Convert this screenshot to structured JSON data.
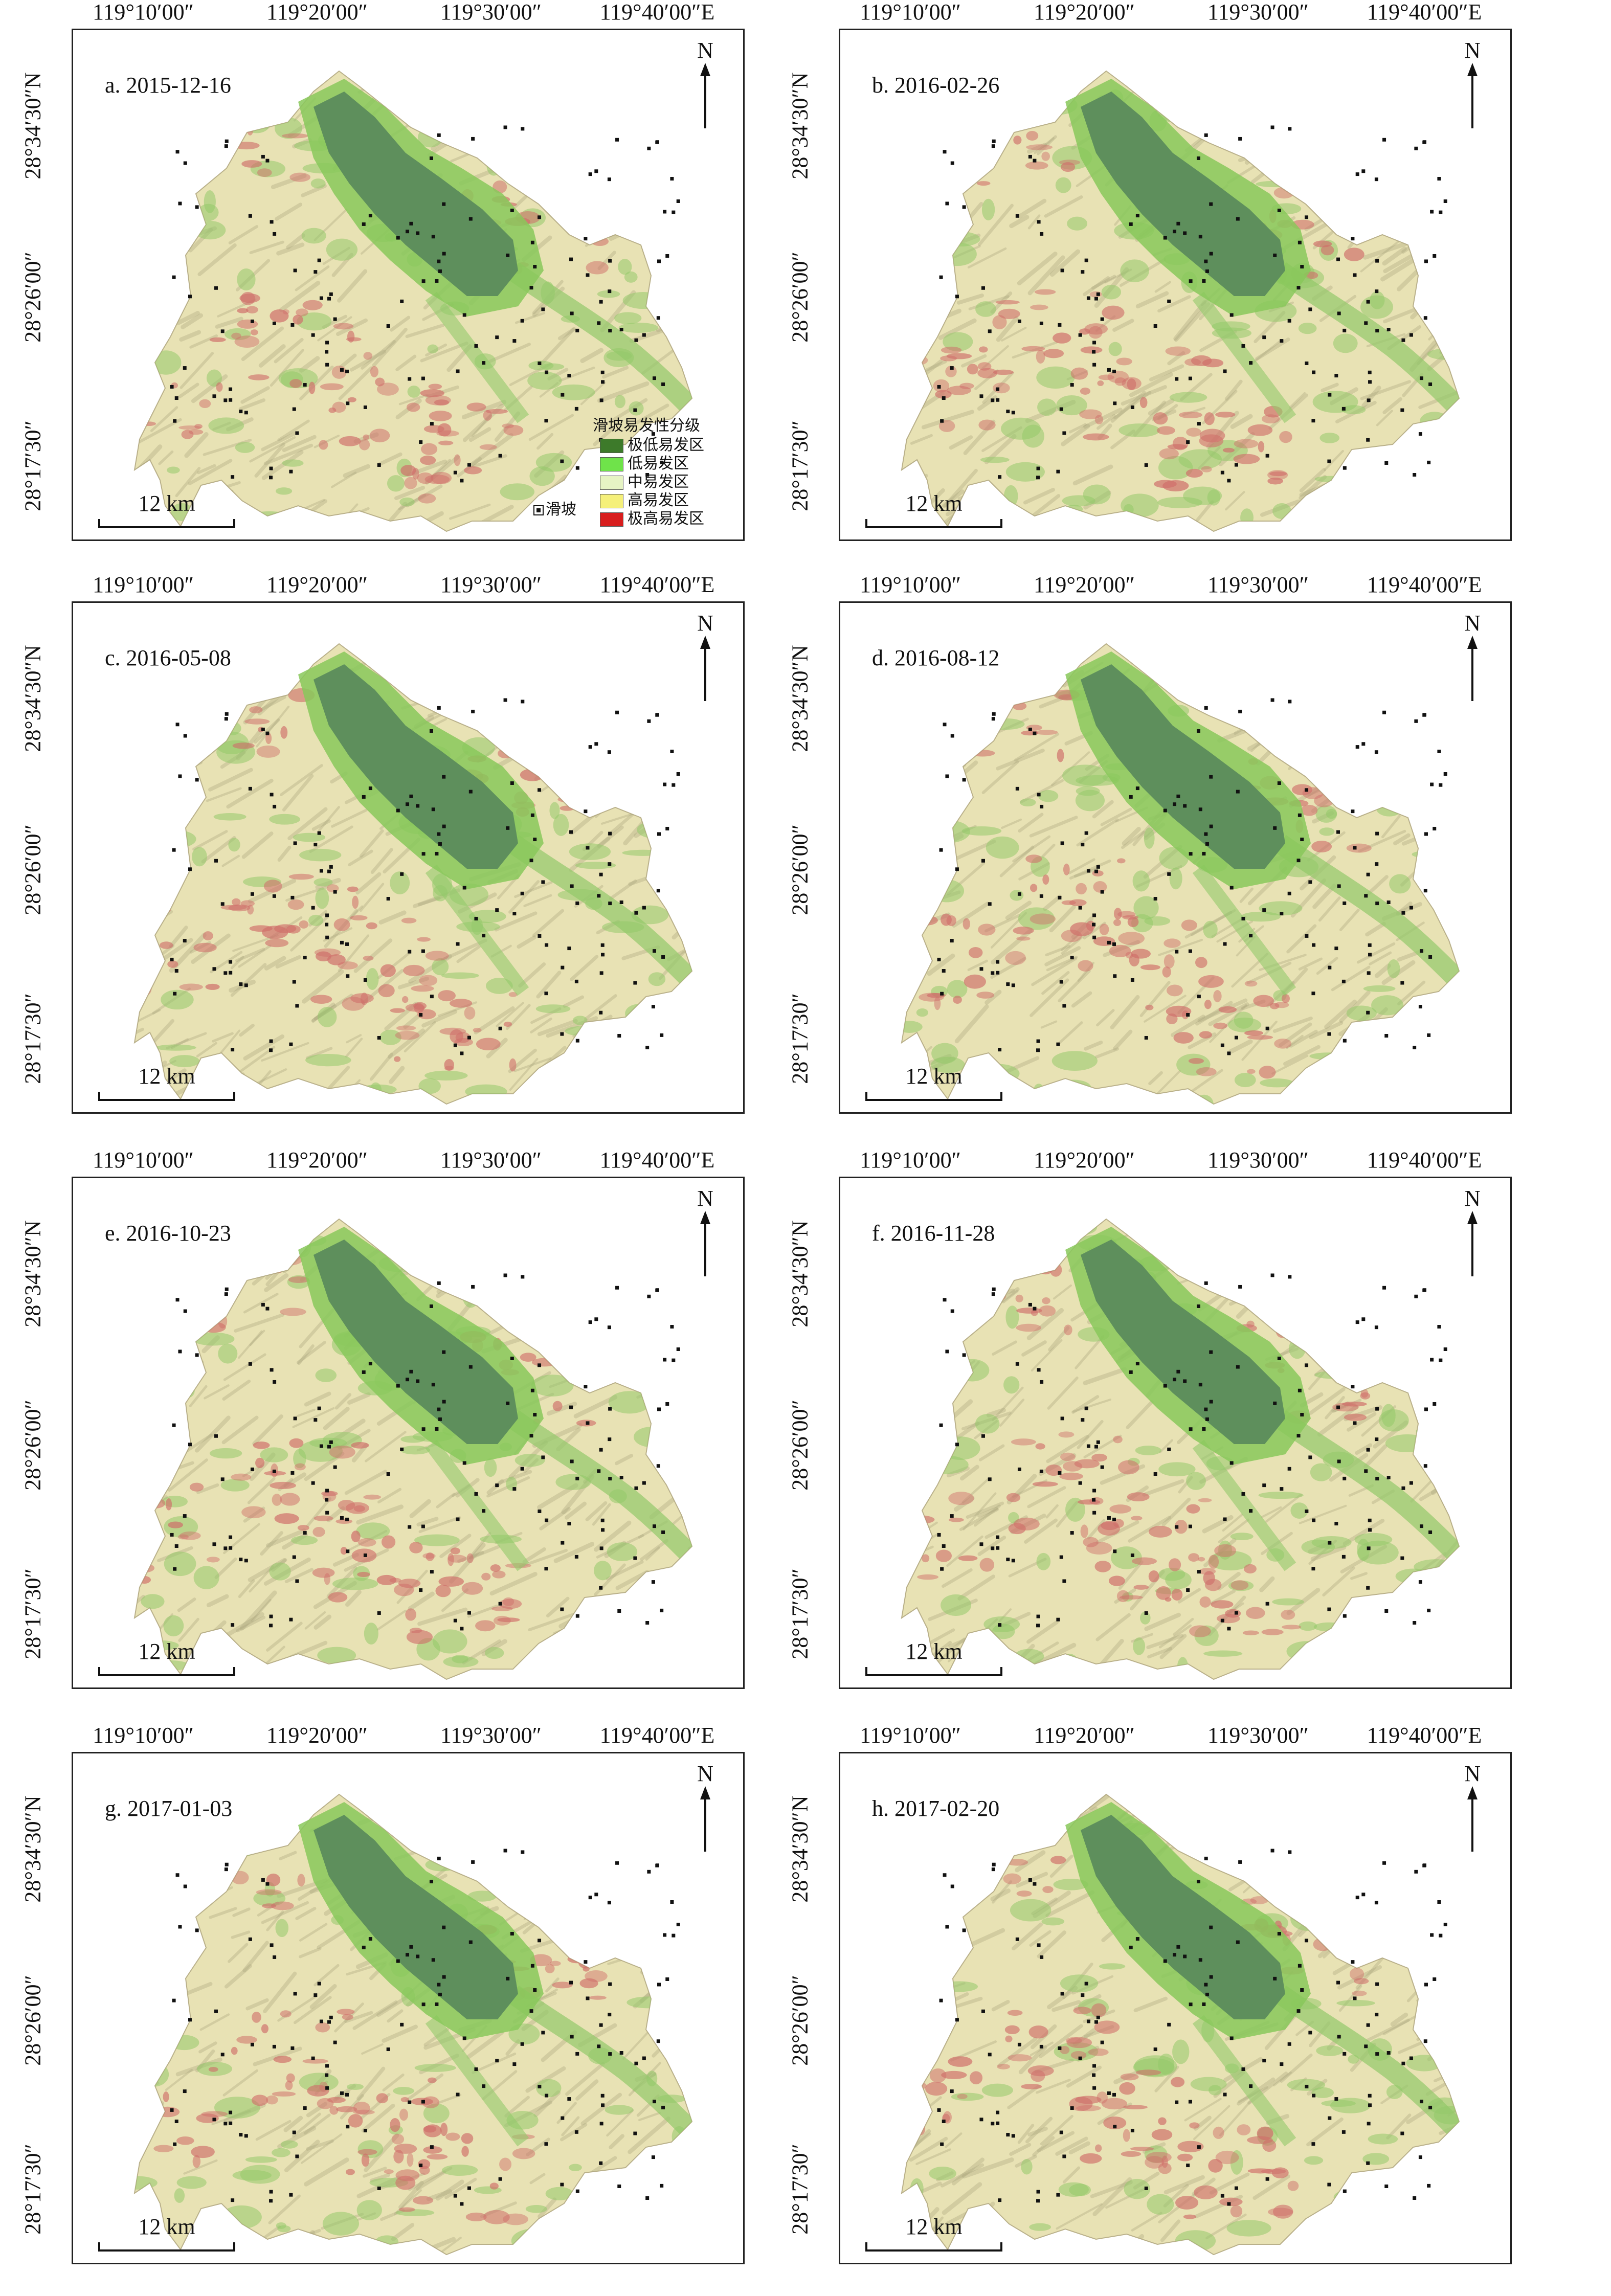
{
  "coordinates": {
    "longitude_labels": [
      "119°10′00″",
      "119°20′00″",
      "119°30′00″",
      "119°40′00″E"
    ],
    "latitude_labels": [
      "28°34′30″N",
      "28°26′00″",
      "28°17′30″"
    ]
  },
  "north_arrow": {
    "letter": "N"
  },
  "scale_bar": {
    "label": "12 km"
  },
  "legend": {
    "title": "滑坡易发性分级",
    "classes": [
      {
        "label": "极低易发区",
        "color": "#3d7a2a"
      },
      {
        "label": "低易发区",
        "color": "#6fe34a"
      },
      {
        "label": "中易发区",
        "color": "#e6f4c4"
      },
      {
        "label": "高易发区",
        "color": "#f5f07a"
      },
      {
        "label": "极高易发区",
        "color": "#d81e1e"
      }
    ],
    "landslide_label": "滑坡",
    "landslide_icon": "landslide-square-icon"
  },
  "colors": {
    "lake": "#5e8f5c",
    "lake_border": "#88c85a",
    "terrain": "#e8e2b4",
    "terrain_shade": "#a9a27a",
    "valley_green": "#93c96a",
    "high_red": "#cf6f6a"
  },
  "panels": [
    {
      "title": "a. 2015-12-16",
      "show_legend": true
    },
    {
      "title": "b. 2016-02-26",
      "show_legend": false
    },
    {
      "title": "c. 2016-05-08",
      "show_legend": false
    },
    {
      "title": "d. 2016-08-12",
      "show_legend": false
    },
    {
      "title": "e. 2016-10-23",
      "show_legend": false
    },
    {
      "title": "f. 2016-11-28",
      "show_legend": false
    },
    {
      "title": "g. 2017-01-03",
      "show_legend": false
    },
    {
      "title": "h. 2017-02-20",
      "show_legend": false
    }
  ]
}
